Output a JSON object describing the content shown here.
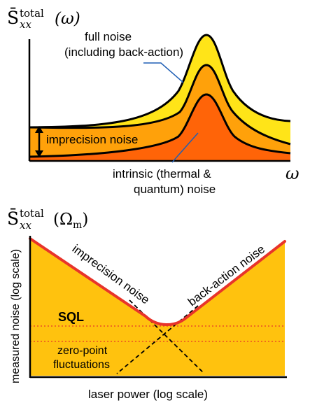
{
  "top_panel": {
    "y_label_symbol": "S̄",
    "y_label_super": "total",
    "y_label_sub": "xx",
    "y_label_arg": "(ω)",
    "x_label": "ω",
    "full_noise_line1": "full noise",
    "full_noise_line2": "(including back-action)",
    "imprecision_label": "imprecision noise",
    "intrinsic_line1": "intrinsic  (thermal &",
    "intrinsic_line2": "quantum) noise",
    "colors": {
      "light_yellow": "#FFE418",
      "mid_orange": "#FFA10A",
      "dark_orange": "#FF6408",
      "pointer_blue": "#1F5FB5"
    }
  },
  "bottom_panel": {
    "y_label_symbol": "S̄",
    "y_label_super": "total",
    "y_label_sub": "xx",
    "y_label_arg": "(Ω",
    "y_label_arg_sub": "m",
    "y_label_close": ")",
    "y_axis_label": "measured noise (log scale)",
    "x_axis_label": "laser power (log scale)",
    "imprecision_label": "imprecision noise",
    "backaction_label": "back-action noise",
    "sql_label": "SQL",
    "zero_point_line1": "zero-point",
    "zero_point_line2": "fluctuations",
    "colors": {
      "fill": "#FFC20E",
      "curve": "#E8342A",
      "dotted": "#E8342A"
    }
  }
}
